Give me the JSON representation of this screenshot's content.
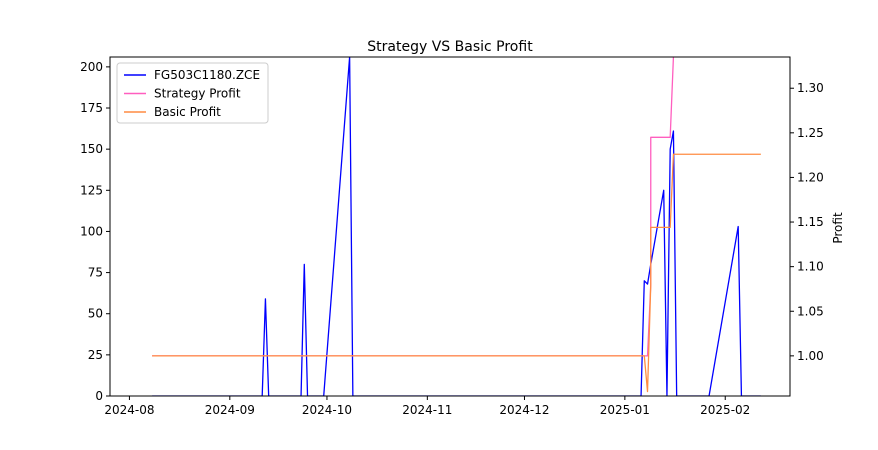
{
  "chart_data": {
    "type": "line",
    "title": "Strategy VS Basic Profit",
    "xlabel": "",
    "ylabel_left": "",
    "ylabel_right": "Profit",
    "legend_placement": "upper-left",
    "x_ticks": [
      "2024-08",
      "2024-09",
      "2024-10",
      "2024-11",
      "2024-12",
      "2025-01",
      "2025-02"
    ],
    "y_left_ticks": [
      0,
      25,
      50,
      75,
      100,
      125,
      150,
      175,
      200
    ],
    "y_right_ticks": [
      "1.00",
      "1.05",
      "1.10",
      "1.15",
      "1.20",
      "1.25",
      "1.30"
    ],
    "x_range": [
      "2024-07-26",
      "2025-02-21"
    ],
    "y_left_range": [
      0,
      206
    ],
    "y_right_range": [
      0.955,
      1.335
    ],
    "series": [
      {
        "name": "FG503C1180.ZCE",
        "axis": "left",
        "color": "#0000ff",
        "points": [
          [
            "2024-08-08",
            0
          ],
          [
            "2024-09-11",
            0
          ],
          [
            "2024-09-12",
            59
          ],
          [
            "2024-09-13",
            0
          ],
          [
            "2024-09-23",
            0
          ],
          [
            "2024-09-24",
            80
          ],
          [
            "2024-09-25",
            0
          ],
          [
            "2024-09-30",
            0
          ],
          [
            "2024-10-08",
            206
          ],
          [
            "2024-10-09",
            0
          ],
          [
            "2025-01-06",
            0
          ],
          [
            "2025-01-07",
            70
          ],
          [
            "2025-01-08",
            68
          ],
          [
            "2025-01-09",
            80
          ],
          [
            "2025-01-13",
            125
          ],
          [
            "2025-01-14",
            0
          ],
          [
            "2025-01-15",
            150
          ],
          [
            "2025-01-16",
            161
          ],
          [
            "2025-01-17",
            0
          ],
          [
            "2025-01-27",
            0
          ],
          [
            "2025-02-05",
            103
          ],
          [
            "2025-02-06",
            0
          ],
          [
            "2025-02-12",
            0
          ]
        ]
      },
      {
        "name": "Strategy Profit",
        "axis": "right",
        "color": "#ff5ebf",
        "points": [
          [
            "2024-08-08",
            1.0
          ],
          [
            "2025-01-07",
            1.0
          ],
          [
            "2025-01-08",
            1.0
          ],
          [
            "2025-01-09",
            1.08
          ],
          [
            "2025-01-09",
            1.245
          ],
          [
            "2025-01-15",
            1.245
          ],
          [
            "2025-01-16",
            1.335
          ]
        ]
      },
      {
        "name": "Basic Profit",
        "axis": "right",
        "color": "#ff8c42",
        "points": [
          [
            "2024-08-08",
            1.0
          ],
          [
            "2025-01-07",
            1.0
          ],
          [
            "2025-01-08",
            0.96
          ],
          [
            "2025-01-09",
            1.08
          ],
          [
            "2025-01-09",
            1.144
          ],
          [
            "2025-01-15",
            1.144
          ],
          [
            "2025-01-16",
            1.226
          ],
          [
            "2025-02-12",
            1.226
          ]
        ]
      }
    ]
  }
}
